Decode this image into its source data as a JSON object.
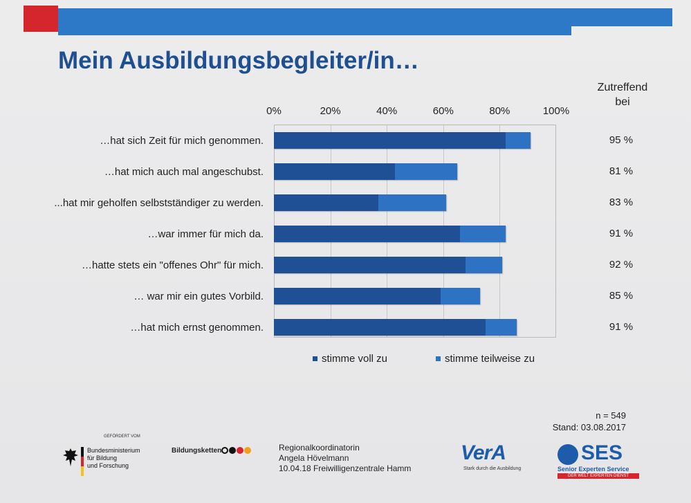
{
  "slide": {
    "title": "Mein Ausbildungsbegleiter/in…",
    "column_header": [
      "Zutreffend",
      "bei"
    ],
    "n_label": "n = 549",
    "stand_label": "Stand: 03.08.2017",
    "footer_lines": [
      "Regionalkoordinatorin",
      "Angela Hövelmann",
      "10.04.18 Freiwilligenzentrale Hamm"
    ],
    "logos": {
      "bmbf_small": "GEFÖRDERT VOM",
      "bmbf_lines": [
        "Bundesministerium",
        "für Bildung",
        "und Forschung"
      ],
      "bildungsketten": "Bildungsketten",
      "vera": "VerA",
      "vera_sub": "Stark durch die Ausbildung",
      "ses": "SES",
      "ses_sub": "Senior Experten Service",
      "ses_band": "DER WELT EXPERTEN DIENST"
    },
    "colors": {
      "stimme_voll_zu": "#1f4f94",
      "stimme_teilweise_zu": "#2e73c3",
      "title": "#1e4f91",
      "accent_red": "#d4262c",
      "accent_blue": "#2e78c8"
    }
  },
  "chart_data": {
    "type": "bar",
    "orientation": "horizontal",
    "stacked": true,
    "title": "Mein Ausbildungsbegleiter/in…",
    "categories": [
      "…hat sich Zeit für mich genommen.",
      "…hat mich auch mal angeschubst.",
      "...hat mir geholfen selbstständiger zu werden.",
      "…war immer für mich da.",
      "…hatte stets ein \"offenes Ohr\" für mich.",
      "… war mir ein gutes Vorbild.",
      "…hat mich ernst genommen."
    ],
    "series": [
      {
        "name": "stimme voll zu",
        "values": [
          82,
          43,
          37,
          66,
          68,
          59,
          75
        ]
      },
      {
        "name": "stimme teilweise zu",
        "values": [
          9,
          22,
          24,
          16,
          13,
          14,
          11
        ]
      }
    ],
    "zutreffend_bei": [
      "95 %",
      "81 %",
      "83 %",
      "91 %",
      "92 %",
      "85 %",
      "91 %"
    ],
    "x_ticks": [
      "0%",
      "20%",
      "40%",
      "60%",
      "80%",
      "100%"
    ],
    "xlim": [
      0,
      100
    ],
    "grid": true,
    "legend_position": "bottom"
  }
}
